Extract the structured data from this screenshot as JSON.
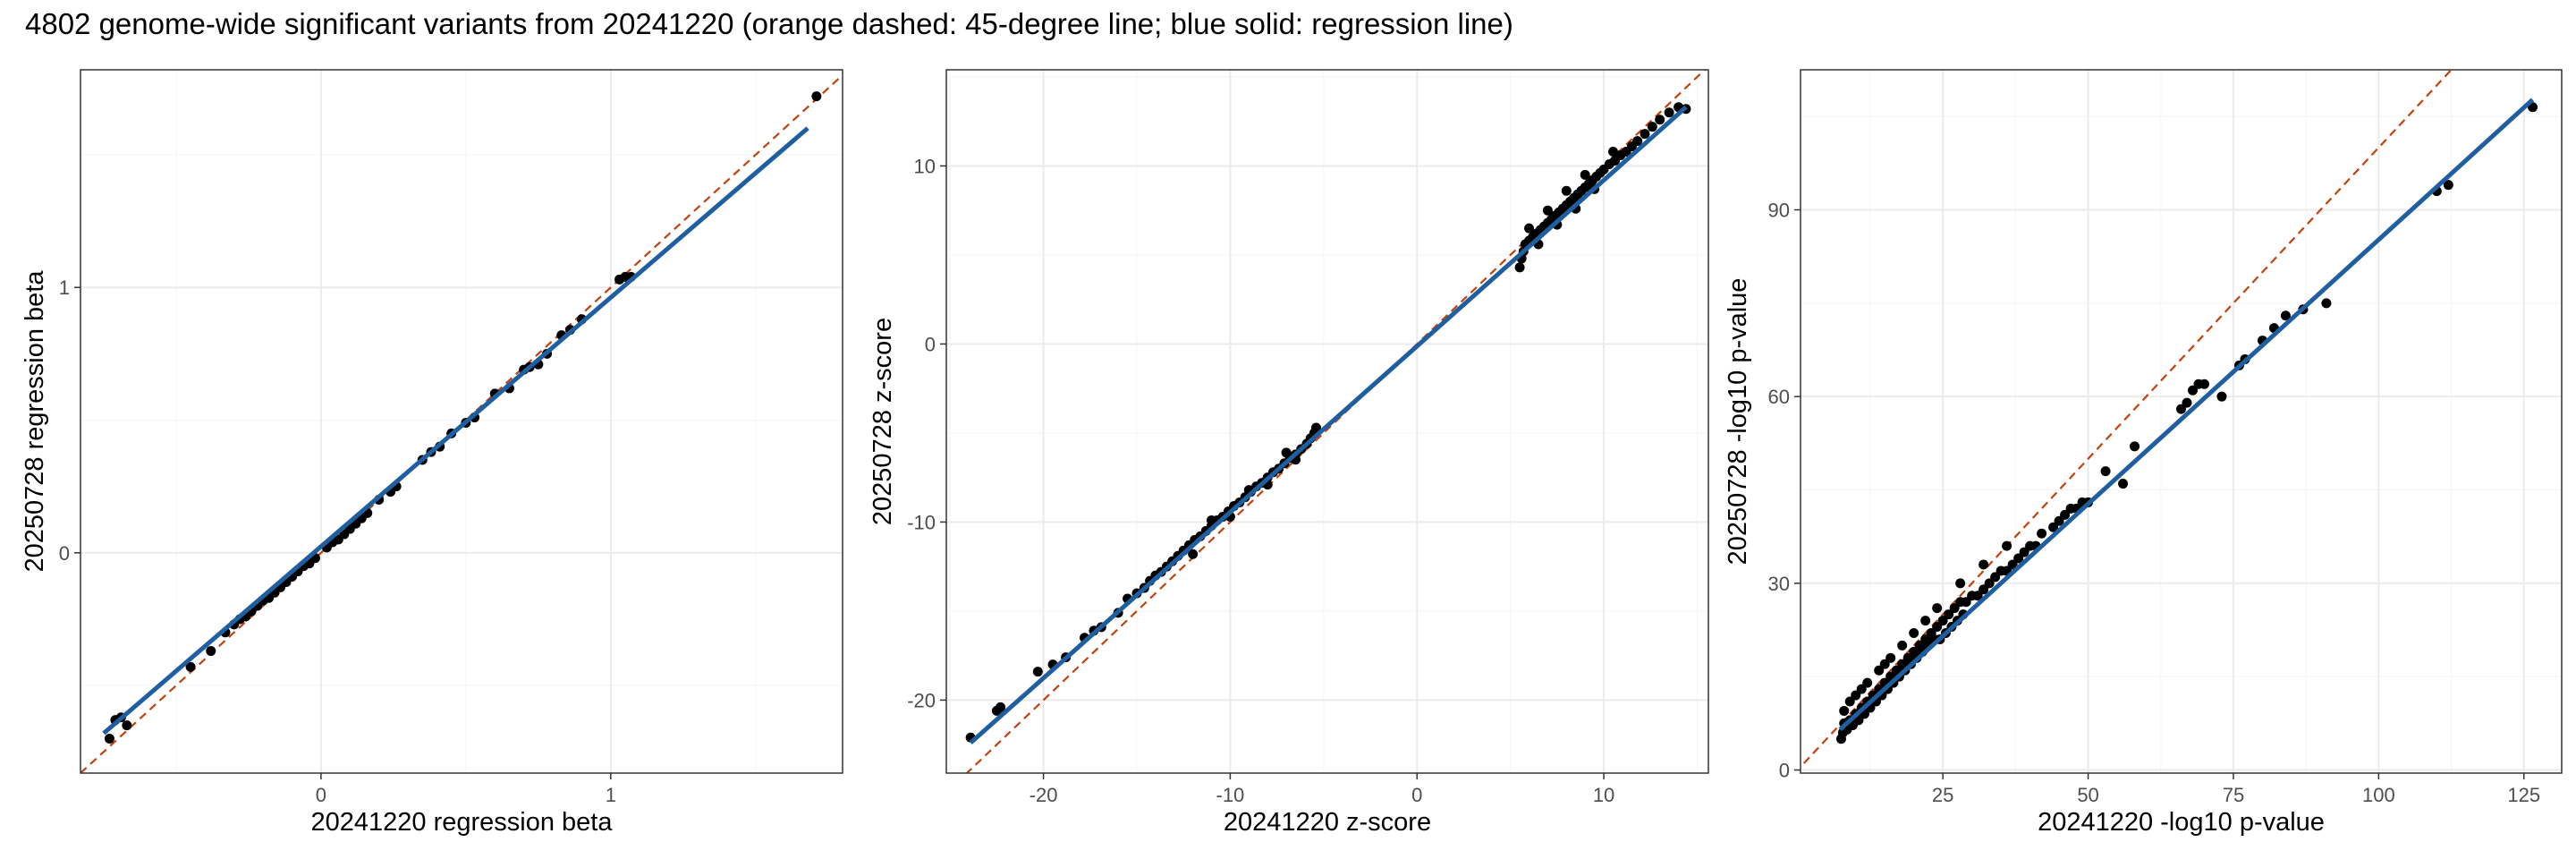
{
  "title": "4802 genome-wide significant variants from 20241220 (orange dashed: 45-degree line; blue solid: regression line)",
  "colors": {
    "points": "#000000",
    "identity_line": "#c2410c",
    "regression_line": "#1f5fa0",
    "grid": "#ebebeb",
    "panel_border": "#333333"
  },
  "chart_data": [
    {
      "type": "scatter",
      "xlabel": "20241220 regression beta",
      "ylabel": "20250728 regression beta",
      "xlim": [
        -0.83,
        1.8
      ],
      "ylim": [
        -0.83,
        1.82
      ],
      "xticks": [
        0,
        1
      ],
      "yticks": [
        0,
        1
      ],
      "xtick_labels": [
        "0",
        "1"
      ],
      "ytick_labels": [
        "0",
        "1"
      ],
      "regression_line": {
        "x": [
          -0.75,
          1.68
        ],
        "y": [
          -0.68,
          1.6
        ]
      },
      "points": [
        [
          -0.73,
          -0.7
        ],
        [
          -0.71,
          -0.63
        ],
        [
          -0.69,
          -0.62
        ],
        [
          -0.67,
          -0.65
        ],
        [
          -0.45,
          -0.43
        ],
        [
          -0.38,
          -0.37
        ],
        [
          -0.33,
          -0.3
        ],
        [
          -0.3,
          -0.27
        ],
        [
          -0.28,
          -0.25
        ],
        [
          -0.26,
          -0.24
        ],
        [
          -0.24,
          -0.22
        ],
        [
          -0.22,
          -0.2
        ],
        [
          -0.2,
          -0.18
        ],
        [
          -0.18,
          -0.17
        ],
        [
          -0.16,
          -0.15
        ],
        [
          -0.14,
          -0.13
        ],
        [
          -0.12,
          -0.11
        ],
        [
          -0.1,
          -0.09
        ],
        [
          -0.08,
          -0.07
        ],
        [
          -0.06,
          -0.05
        ],
        [
          -0.04,
          -0.04
        ],
        [
          -0.02,
          -0.02
        ],
        [
          0.02,
          0.02
        ],
        [
          0.04,
          0.04
        ],
        [
          0.06,
          0.05
        ],
        [
          0.08,
          0.07
        ],
        [
          0.1,
          0.09
        ],
        [
          0.12,
          0.11
        ],
        [
          0.14,
          0.13
        ],
        [
          0.16,
          0.15
        ],
        [
          0.2,
          0.2
        ],
        [
          0.24,
          0.23
        ],
        [
          0.26,
          0.25
        ],
        [
          0.35,
          0.35
        ],
        [
          0.38,
          0.38
        ],
        [
          0.41,
          0.4
        ],
        [
          0.45,
          0.45
        ],
        [
          0.5,
          0.49
        ],
        [
          0.53,
          0.51
        ],
        [
          0.6,
          0.6
        ],
        [
          0.65,
          0.62
        ],
        [
          0.7,
          0.69
        ],
        [
          0.72,
          0.7
        ],
        [
          0.75,
          0.71
        ],
        [
          0.78,
          0.75
        ],
        [
          0.83,
          0.82
        ],
        [
          0.86,
          0.84
        ],
        [
          0.9,
          0.88
        ],
        [
          1.03,
          1.03
        ],
        [
          1.05,
          1.04
        ],
        [
          1.07,
          1.04
        ],
        [
          1.71,
          1.72
        ]
      ]
    },
    {
      "type": "scatter",
      "xlabel": "20241220 z-score",
      "ylabel": "20250728 z-score",
      "xlim": [
        -25.2,
        15.6
      ],
      "ylim": [
        -24.1,
        15.4
      ],
      "xticks": [
        -20,
        -10,
        0,
        10
      ],
      "yticks": [
        -20,
        -10,
        0,
        10
      ],
      "xtick_labels": [
        "-20",
        "-10",
        "0",
        "10"
      ],
      "ytick_labels": [
        "-20",
        "-10",
        "0",
        "10"
      ],
      "regression_line": {
        "x": [
          -23.9,
          14.4
        ],
        "y": [
          -22.4,
          13.3
        ]
      },
      "points": [
        [
          -23.9,
          -22.1
        ],
        [
          -22.5,
          -20.6
        ],
        [
          -22.3,
          -20.4
        ],
        [
          -20.3,
          -18.4
        ],
        [
          -19.5,
          -18
        ],
        [
          -18.8,
          -17.6
        ],
        [
          -17.8,
          -16.5
        ],
        [
          -17.3,
          -16.1
        ],
        [
          -16.9,
          -15.9
        ],
        [
          -16,
          -15.1
        ],
        [
          -15.5,
          -14.3
        ],
        [
          -15,
          -14
        ],
        [
          -14.6,
          -13.7
        ],
        [
          -14.3,
          -13.3
        ],
        [
          -14,
          -13
        ],
        [
          -13.7,
          -12.8
        ],
        [
          -13.4,
          -12.5
        ],
        [
          -13.1,
          -12.2
        ],
        [
          -12.8,
          -11.9
        ],
        [
          -12.5,
          -11.6
        ],
        [
          -12.2,
          -11.3
        ],
        [
          -11.9,
          -11
        ],
        [
          -11.6,
          -10.8
        ],
        [
          -11.3,
          -10.5
        ],
        [
          -11,
          -10.2
        ],
        [
          -10.7,
          -9.9
        ],
        [
          -10.4,
          -9.7
        ],
        [
          -10.1,
          -9.4
        ],
        [
          -9.8,
          -9.1
        ],
        [
          -9.5,
          -8.9
        ],
        [
          -9.2,
          -8.6
        ],
        [
          -8.9,
          -8.3
        ],
        [
          -8.6,
          -8
        ],
        [
          -8.3,
          -7.8
        ],
        [
          -8,
          -7.5
        ],
        [
          -7.7,
          -7.2
        ],
        [
          -7.4,
          -7
        ],
        [
          -7.1,
          -6.7
        ],
        [
          -6.8,
          -6.4
        ],
        [
          -6.5,
          -6.2
        ],
        [
          -6.2,
          -5.9
        ],
        [
          -5.9,
          -5.6
        ],
        [
          -5.7,
          -5.3
        ],
        [
          -5.5,
          -5
        ],
        [
          -5.4,
          -4.7
        ],
        [
          -12,
          -11.8
        ],
        [
          -10,
          -9.7
        ],
        [
          -8,
          -7.9
        ],
        [
          -6.5,
          -6.5
        ],
        [
          -9,
          -8.2
        ],
        [
          -11,
          -9.9
        ],
        [
          -7,
          -6.1
        ],
        [
          5.5,
          4.3
        ],
        [
          5.6,
          4.8
        ],
        [
          5.7,
          5.2
        ],
        [
          5.8,
          5.6
        ],
        [
          6,
          5.8
        ],
        [
          6.2,
          6
        ],
        [
          6.4,
          6.2
        ],
        [
          6.6,
          6.4
        ],
        [
          6.8,
          6.6
        ],
        [
          7,
          6.8
        ],
        [
          7.2,
          7
        ],
        [
          7.4,
          7.2
        ],
        [
          7.6,
          7.4
        ],
        [
          7.8,
          7.6
        ],
        [
          8,
          7.8
        ],
        [
          8.2,
          8
        ],
        [
          8.4,
          8.2
        ],
        [
          8.6,
          8.4
        ],
        [
          8.8,
          8.6
        ],
        [
          9,
          8.8
        ],
        [
          9.2,
          9
        ],
        [
          9.4,
          9.2
        ],
        [
          9.6,
          9.4
        ],
        [
          9.8,
          9.6
        ],
        [
          10,
          9.8
        ],
        [
          10.3,
          10.1
        ],
        [
          10.6,
          10.3
        ],
        [
          10.9,
          10.6
        ],
        [
          11.2,
          10.8
        ],
        [
          11.5,
          11.1
        ],
        [
          11.8,
          11.4
        ],
        [
          12.2,
          11.8
        ],
        [
          12.6,
          12.2
        ],
        [
          13,
          12.6
        ],
        [
          13.5,
          13
        ],
        [
          14,
          13.3
        ],
        [
          14.4,
          13.2
        ],
        [
          6.5,
          5.6
        ],
        [
          7.5,
          6.7
        ],
        [
          8.5,
          7.6
        ],
        [
          9.5,
          8.7
        ],
        [
          6,
          6.5
        ],
        [
          7,
          7.5
        ],
        [
          8,
          8.6
        ],
        [
          9,
          9.5
        ],
        [
          10.5,
          10.8
        ]
      ]
    },
    {
      "type": "scatter",
      "xlabel": "20241220 -log10 p-value",
      "ylabel": "20250728 -log10 p-value",
      "xlim": [
        0.5,
        131.5
      ],
      "ylim": [
        -0.5,
        112.5
      ],
      "xticks": [
        25,
        50,
        75,
        100,
        125
      ],
      "yticks": [
        0,
        30,
        60,
        90
      ],
      "xtick_labels": [
        "25",
        "50",
        "75",
        "100",
        "125"
      ],
      "ytick_labels": [
        "0",
        "30",
        "60",
        "90"
      ],
      "regression_line": {
        "x": [
          7.3,
          126.5
        ],
        "y": [
          6.5,
          107.7
        ]
      },
      "points": [
        [
          7.5,
          5
        ],
        [
          7.8,
          6
        ],
        [
          8,
          7.5
        ],
        [
          8.5,
          6.5
        ],
        [
          9,
          8
        ],
        [
          9.5,
          7.2
        ],
        [
          10,
          9
        ],
        [
          10.5,
          8
        ],
        [
          11,
          10
        ],
        [
          11.5,
          9
        ],
        [
          12,
          11
        ],
        [
          12.5,
          10
        ],
        [
          13,
          12
        ],
        [
          13.5,
          11
        ],
        [
          14,
          13
        ],
        [
          14.5,
          12
        ],
        [
          15,
          14
        ],
        [
          15.5,
          13
        ],
        [
          16,
          15
        ],
        [
          16.5,
          14
        ],
        [
          17,
          16
        ],
        [
          17.5,
          15
        ],
        [
          18,
          17
        ],
        [
          18.5,
          16
        ],
        [
          19,
          18
        ],
        [
          19.5,
          17
        ],
        [
          20,
          19
        ],
        [
          20.5,
          18
        ],
        [
          21,
          20
        ],
        [
          21.5,
          19
        ],
        [
          22,
          21
        ],
        [
          22.5,
          20
        ],
        [
          23,
          22
        ],
        [
          23.5,
          21
        ],
        [
          24,
          23
        ],
        [
          24.5,
          21
        ],
        [
          25,
          24
        ],
        [
          25.5,
          22
        ],
        [
          26,
          25
        ],
        [
          26.5,
          23
        ],
        [
          27,
          26
        ],
        [
          27.5,
          24
        ],
        [
          28,
          27
        ],
        [
          28.5,
          25
        ],
        [
          29,
          27
        ],
        [
          30,
          28
        ],
        [
          31,
          28
        ],
        [
          32,
          29
        ],
        [
          33,
          30
        ],
        [
          34,
          31
        ],
        [
          35,
          32
        ],
        [
          36,
          32
        ],
        [
          37,
          33
        ],
        [
          38,
          34
        ],
        [
          39,
          35
        ],
        [
          40,
          36
        ],
        [
          41,
          36
        ],
        [
          42,
          38
        ],
        [
          44,
          39
        ],
        [
          45,
          40
        ],
        [
          46,
          41
        ],
        [
          47,
          42
        ],
        [
          48,
          42
        ],
        [
          49,
          43
        ],
        [
          50,
          43
        ],
        [
          53,
          48
        ],
        [
          56,
          46
        ],
        [
          58,
          52
        ],
        [
          66,
          58
        ],
        [
          67,
          59
        ],
        [
          68,
          61
        ],
        [
          69,
          62
        ],
        [
          70,
          62
        ],
        [
          73,
          60
        ],
        [
          76,
          65
        ],
        [
          77,
          66
        ],
        [
          80,
          69
        ],
        [
          82,
          71
        ],
        [
          84,
          73
        ],
        [
          87,
          74
        ],
        [
          91,
          75
        ],
        [
          110,
          93
        ],
        [
          112,
          94
        ],
        [
          126.5,
          106.5
        ],
        [
          10,
          12
        ],
        [
          12,
          14
        ],
        [
          15,
          17
        ],
        [
          18,
          20
        ],
        [
          20,
          22
        ],
        [
          22,
          24
        ],
        [
          8,
          9.5
        ],
        [
          9,
          11
        ],
        [
          11,
          13
        ],
        [
          14,
          16
        ],
        [
          16,
          18
        ],
        [
          24,
          26
        ],
        [
          28,
          30
        ],
        [
          32,
          33
        ],
        [
          36,
          36
        ]
      ]
    }
  ]
}
